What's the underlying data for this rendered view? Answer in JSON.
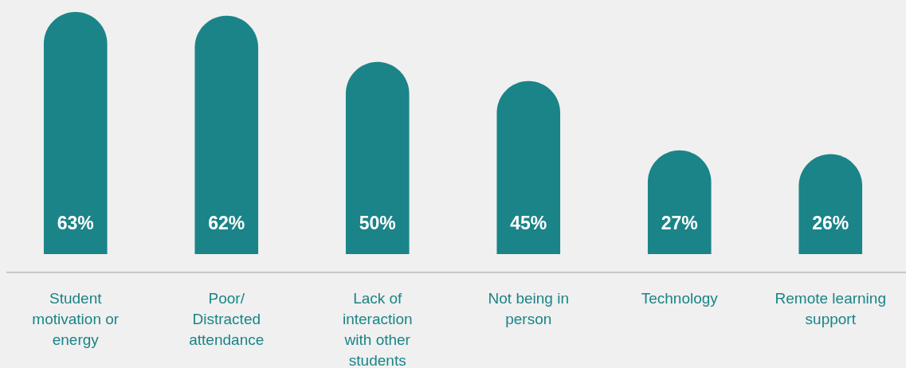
{
  "chart_data": {
    "type": "bar",
    "categories": [
      "Student motivation or energy",
      "Poor/ Distracted attendance",
      "Lack of interaction with other students",
      "Not being in person",
      "Technology",
      "Remote learning support"
    ],
    "values": [
      63,
      62,
      50,
      45,
      27,
      26
    ],
    "value_labels": [
      "63%",
      "62%",
      "50%",
      "45%",
      "27%",
      "26%"
    ],
    "color": "#1b8488"
  }
}
